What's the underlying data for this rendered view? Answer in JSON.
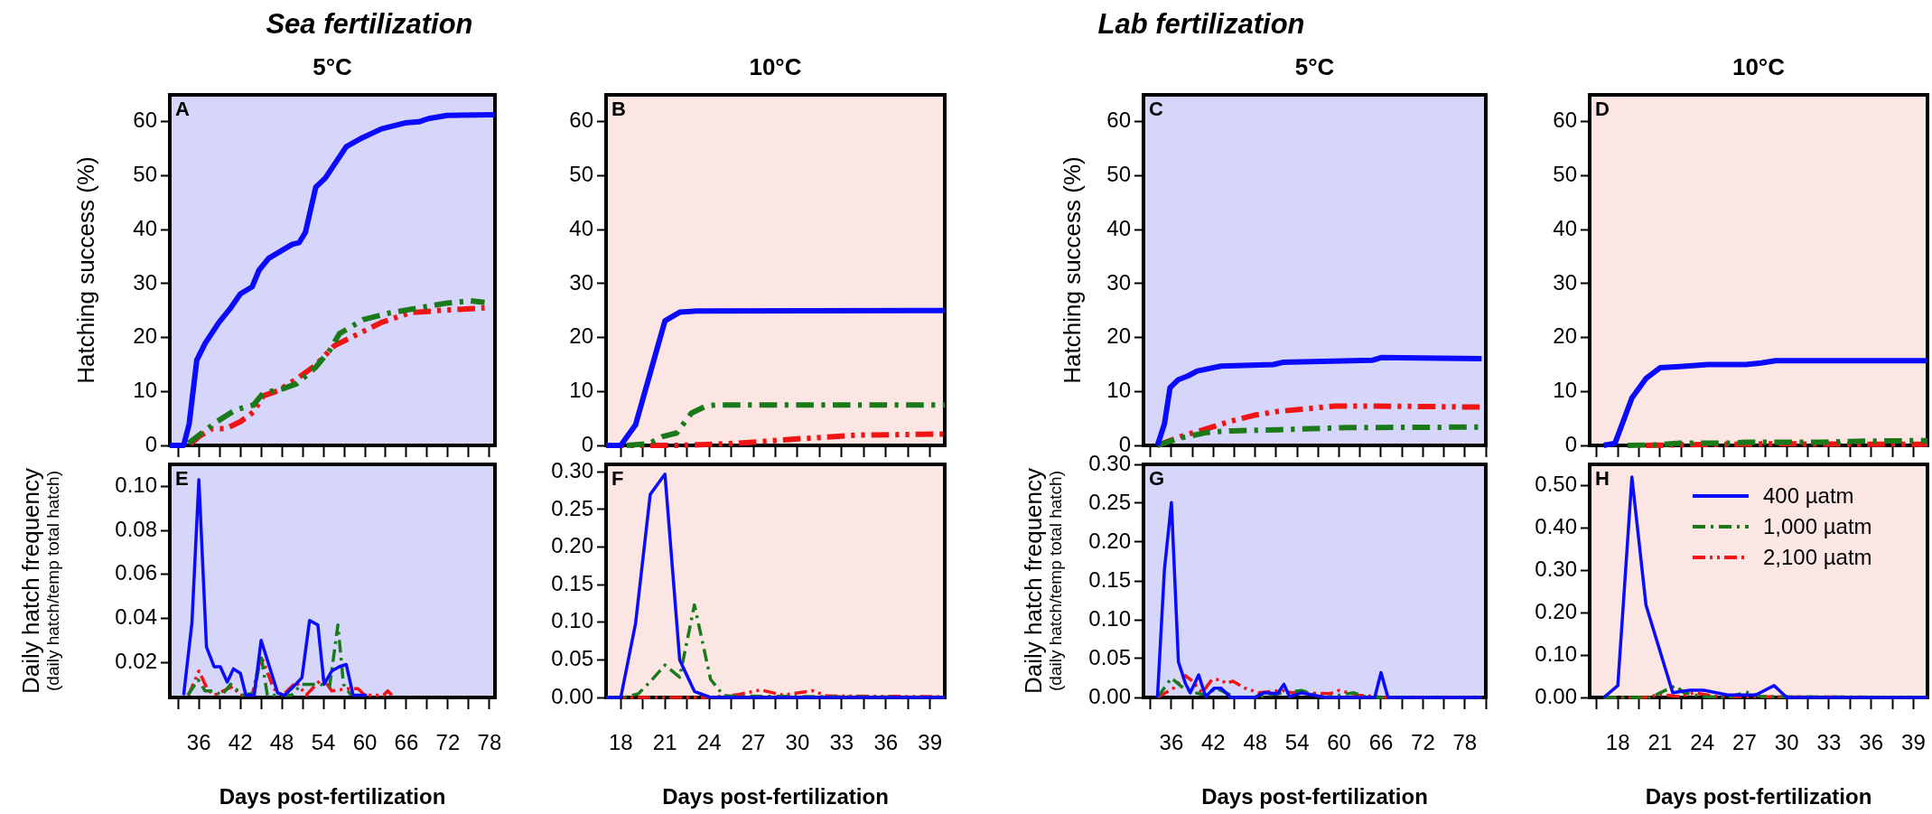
{
  "chart_data": [
    {
      "type": "line",
      "title": "Sea fertilization",
      "subtitle": "5°C",
      "ylabel": "Hatching success (%)",
      "annotations": [
        "A"
      ],
      "xlim": [
        31.8,
        78.8
      ],
      "ylim": [
        0,
        65
      ],
      "tick_labels": "y",
      "xticks": [
        {
          "value": 33,
          "label": null
        },
        36,
        {
          "value": 39,
          "label": null
        },
        42,
        {
          "value": 45,
          "label": null
        },
        48,
        {
          "value": 51,
          "label": null
        },
        54,
        {
          "value": 57,
          "label": null
        },
        60,
        {
          "value": 63,
          "label": null
        },
        66,
        {
          "value": 69,
          "label": null
        },
        72,
        {
          "value": 75,
          "label": null
        },
        78
      ],
      "yticks": [
        0,
        10,
        20,
        30,
        40,
        50,
        60
      ],
      "series": [
        {
          "color": "#0a0aff",
          "line_style": "solid",
          "x": [
            31.8,
            33.8,
            34.6,
            35.7,
            36.9,
            38.9,
            40.6,
            42,
            43.7,
            44.7,
            46.1,
            47.8,
            49.5,
            50.5,
            51.4,
            52.9,
            54.3,
            57.3,
            59.7,
            62.4,
            65.8,
            67.8,
            69.2,
            71.9,
            78.7
          ],
          "values": [
            0,
            0,
            4,
            15.8,
            18.9,
            22.8,
            25.5,
            28.1,
            29.4,
            32.5,
            34.7,
            36,
            37.3,
            37.6,
            39.5,
            47.9,
            49.6,
            55.4,
            57.1,
            58.7,
            59.8,
            60,
            60.6,
            61.2,
            61.3
          ]
        },
        {
          "color": "#1a7a1a",
          "line_style": "dashdot",
          "x": [
            34.5,
            35.9,
            38.6,
            41.3,
            43.9,
            45.3,
            48.1,
            50.1,
            52.9,
            54.9,
            56.3,
            59.7,
            63.7,
            67.8,
            71.9,
            75.3,
            77.3
          ],
          "values": [
            0.4,
            1.8,
            4.4,
            6.6,
            7.5,
            9.7,
            10.5,
            11.4,
            14.5,
            17.6,
            20.7,
            23.3,
            24.6,
            25.5,
            26.4,
            26.8,
            26.5
          ]
        },
        {
          "color": "#f01414",
          "line_style": "dashdotdot",
          "x": [
            34.8,
            36.2,
            37.9,
            39.9,
            42,
            43.9,
            45.3,
            47.4,
            50.1,
            52.9,
            55.6,
            58.3,
            62.4,
            66.5,
            70.6,
            77.3
          ],
          "values": [
            0.3,
            1.8,
            3.1,
            3.1,
            4.4,
            6.2,
            9.2,
            10.1,
            12.3,
            14.9,
            18.5,
            20.2,
            22.8,
            24.6,
            25,
            25.5
          ]
        }
      ]
    },
    {
      "type": "line",
      "subtitle": "10°C",
      "annotations": [
        "B"
      ],
      "xlim": [
        17,
        40
      ],
      "ylim": [
        0,
        65
      ],
      "tick_labels": "y",
      "xticks": [
        18,
        {
          "value": 19.5,
          "label": null
        },
        21,
        {
          "value": 22.5,
          "label": null
        },
        24,
        {
          "value": 25.5,
          "label": null
        },
        27,
        {
          "value": 28.5,
          "label": null
        },
        30,
        {
          "value": 31.5,
          "label": null
        },
        33,
        {
          "value": 34.5,
          "label": null
        },
        36,
        {
          "value": 37.5,
          "label": null
        },
        39
      ],
      "yticks": [
        0,
        10,
        20,
        30,
        40,
        50,
        60
      ],
      "series": [
        {
          "color": "#0a0aff",
          "line_style": "solid",
          "x": [
            17,
            18,
            19,
            21,
            22,
            23.1,
            40
          ],
          "values": [
            0,
            0,
            3.8,
            23.1,
            24.7,
            24.9,
            25
          ]
        },
        {
          "color": "#1a7a1a",
          "line_style": "dashdot",
          "x": [
            18.4,
            19.9,
            20.8,
            21.8,
            22.8,
            23.8,
            24.5,
            40
          ],
          "values": [
            0,
            0.3,
            1.6,
            2.3,
            6,
            7.3,
            7.5,
            7.5
          ]
        },
        {
          "color": "#f01414",
          "line_style": "dashdotdot",
          "x": [
            17,
            22,
            26,
            30,
            34,
            40
          ],
          "values": [
            0,
            0,
            0.4,
            1.2,
            1.9,
            2.1
          ]
        }
      ]
    },
    {
      "type": "line",
      "title": "Lab fertilization",
      "subtitle": "5°C",
      "ylabel": "Hatching success (%)",
      "annotations": [
        "C"
      ],
      "xlim": [
        32,
        81
      ],
      "ylim": [
        0,
        65
      ],
      "tick_labels": "y",
      "xticks": [
        {
          "value": 33,
          "label": null
        },
        36,
        {
          "value": 39,
          "label": null
        },
        42,
        {
          "value": 45,
          "label": null
        },
        48,
        {
          "value": 51,
          "label": null
        },
        54,
        {
          "value": 57,
          "label": null
        },
        60,
        {
          "value": 63,
          "label": null
        },
        66,
        {
          "value": 69,
          "label": null
        },
        72,
        {
          "value": 75,
          "label": null
        },
        78,
        {
          "value": 81,
          "label": null
        }
      ],
      "yticks": [
        0,
        10,
        20,
        30,
        40,
        50,
        60
      ],
      "series": [
        {
          "color": "#0a0aff",
          "line_style": "solid",
          "x": [
            34,
            35,
            35.8,
            37,
            38.4,
            39.7,
            43.1,
            50.6,
            51.9,
            64.8,
            66.1,
            80.4
          ],
          "values": [
            0,
            4,
            10.7,
            12.2,
            12.9,
            13.8,
            14.7,
            15,
            15.4,
            15.8,
            16.3,
            16.1
          ]
        },
        {
          "color": "#1a7a1a",
          "line_style": "dashdot",
          "x": [
            34,
            37,
            41.1,
            44.5,
            51.2,
            55.9,
            61.4,
            80.4
          ],
          "values": [
            0,
            1.3,
            2.4,
            2.7,
            2.9,
            3.1,
            3.3,
            3.4
          ]
        },
        {
          "color": "#f01414",
          "line_style": "dashdotdot",
          "x": [
            34,
            37.7,
            41.1,
            44.5,
            47.9,
            51.2,
            54.6,
            59.4,
            64.8,
            80.4
          ],
          "values": [
            0,
            1.8,
            3.1,
            4.5,
            5.6,
            6.3,
            6.7,
            7.3,
            7.3,
            7.1
          ]
        }
      ]
    },
    {
      "type": "line",
      "subtitle": "10°C",
      "annotations": [
        "D"
      ],
      "xlim": [
        16,
        40
      ],
      "ylim": [
        0,
        65
      ],
      "tick_labels": "y",
      "xticks": [
        {
          "value": 16.5,
          "label": null
        },
        18,
        {
          "value": 19.5,
          "label": null
        },
        21,
        {
          "value": 22.5,
          "label": null
        },
        24,
        {
          "value": 25.5,
          "label": null
        },
        27,
        {
          "value": 28.5,
          "label": null
        },
        30,
        {
          "value": 31.5,
          "label": null
        },
        33,
        {
          "value": 34.5,
          "label": null
        },
        36,
        {
          "value": 37.5,
          "label": null
        },
        39
      ],
      "yticks": [
        0,
        10,
        20,
        30,
        40,
        50,
        60
      ],
      "series": [
        {
          "color": "#0a0aff",
          "line_style": "solid",
          "x": [
            17,
            17.8,
            19,
            20,
            21,
            22.4,
            24.4,
            27.1,
            28.2,
            29.2,
            40
          ],
          "values": [
            0,
            0.4,
            8.8,
            12.4,
            14.4,
            14.6,
            15,
            15,
            15.3,
            15.7,
            15.7
          ]
        },
        {
          "color": "#1a7a1a",
          "line_style": "dashdot",
          "x": [
            18.7,
            20.7,
            22.4,
            25.8,
            27.1,
            32.6,
            36,
            40
          ],
          "values": [
            0,
            0.1,
            0.4,
            0.4,
            0.6,
            0.6,
            0.8,
            0.9
          ]
        },
        {
          "color": "#f01414",
          "line_style": "dashdotdot",
          "x": [
            20,
            22.4,
            25.8,
            29.2,
            36,
            40
          ],
          "values": [
            0,
            0.1,
            0.2,
            0.3,
            0.2,
            0.2
          ]
        }
      ]
    },
    {
      "type": "line",
      "xlabel": "Days post-fertilization",
      "ylabel": "Daily hatch frequency\n(daily hatch/temp total hatch)",
      "annotations": [
        "E"
      ],
      "xlim": [
        31.8,
        78.8
      ],
      "ylim": [
        0.004,
        0.11
      ],
      "xticks": [
        {
          "value": 33,
          "label": null
        },
        36,
        {
          "value": 39,
          "label": null
        },
        42,
        {
          "value": 45,
          "label": null
        },
        48,
        {
          "value": 51,
          "label": null
        },
        54,
        {
          "value": 57,
          "label": null
        },
        60,
        {
          "value": 63,
          "label": null
        },
        66,
        {
          "value": 69,
          "label": null
        },
        72,
        {
          "value": 75,
          "label": null
        },
        78
      ],
      "yticks": [
        0.02,
        0.04,
        0.06,
        0.08,
        {
          "value": 0.1,
          "label": "0.10"
        }
      ],
      "series": [
        {
          "color": "#0a0aff",
          "line_style": "solid",
          "x": [
            33.8,
            35,
            36,
            37.1,
            38.2,
            39.1,
            40.1,
            41,
            42,
            42.8,
            44,
            45,
            47.4,
            48.4,
            50,
            50.9,
            52,
            53.2,
            54.1,
            55.2,
            56.3,
            57.3,
            58.3,
            60.3
          ],
          "values": [
            0.005,
            0.038,
            0.103,
            0.027,
            0.018,
            0.018,
            0.011,
            0.017,
            0.015,
            0.005,
            0.005,
            0.03,
            0.006,
            0.005,
            0.01,
            0.013,
            0.039,
            0.037,
            0.01,
            0.016,
            0.018,
            0.019,
            0.005,
            0.005
          ]
        },
        {
          "color": "#1a7a1a",
          "line_style": "dashdot",
          "x": [
            34.4,
            35.9,
            36.9,
            38.2,
            39.3,
            40.6,
            42.3,
            44,
            45,
            45.9,
            47.4,
            49.4,
            50.8,
            53.5,
            54.9,
            56.1,
            56.9,
            58
          ],
          "values": [
            0.005,
            0.012,
            0.007,
            0.007,
            0.005,
            0.01,
            0.005,
            0.006,
            0.023,
            0.005,
            0.005,
            0.005,
            0.01,
            0.01,
            0.009,
            0.037,
            0.01,
            0.005
          ]
        },
        {
          "color": "#f01414",
          "line_style": "dashdotdot",
          "x": [
            34.5,
            36,
            37.2,
            38.2,
            40.9,
            42,
            43.7,
            45,
            46.8,
            48.1,
            50.1,
            51.5,
            53.9,
            55.2,
            57.6,
            59,
            60,
            62.7,
            63.3,
            63.9
          ],
          "values": [
            0.005,
            0.016,
            0.008,
            0.005,
            0.009,
            0.005,
            0.005,
            0.023,
            0.008,
            0.005,
            0.011,
            0.005,
            0.013,
            0.007,
            0.008,
            0.008,
            0.005,
            0.005,
            0.007,
            0.005
          ]
        }
      ]
    },
    {
      "type": "line",
      "xlabel": "Days post-fertilization",
      "annotations": [
        "F"
      ],
      "xlim": [
        17,
        40
      ],
      "ylim": [
        0,
        0.31
      ],
      "xticks": [
        18,
        {
          "value": 19.5,
          "label": null
        },
        21,
        {
          "value": 22.5,
          "label": null
        },
        24,
        {
          "value": 25.5,
          "label": null
        },
        27,
        {
          "value": 28.5,
          "label": null
        },
        30,
        {
          "value": 31.5,
          "label": null
        },
        33,
        {
          "value": 34.5,
          "label": null
        },
        36,
        {
          "value": 37.5,
          "label": null
        },
        39
      ],
      "yticks": [
        {
          "value": 0,
          "label": "0.00"
        },
        0.05,
        {
          "value": 0.1,
          "label": "0.10"
        },
        0.15,
        {
          "value": 0.2,
          "label": "0.20"
        },
        0.25,
        {
          "value": 0.3,
          "label": "0.30"
        }
      ],
      "series": [
        {
          "color": "#0a0aff",
          "line_style": "solid",
          "x": [
            17,
            18,
            19,
            20,
            21,
            22,
            23,
            24.1,
            40
          ],
          "values": [
            0,
            0,
            0.098,
            0.27,
            0.297,
            0.05,
            0.008,
            0,
            0
          ]
        },
        {
          "color": "#1a7a1a",
          "line_style": "dashdot",
          "x": [
            17,
            18.2,
            19.2,
            20,
            21,
            22,
            23,
            24.1,
            25,
            40
          ],
          "values": [
            0,
            0,
            0.005,
            0.021,
            0.043,
            0.027,
            0.123,
            0.024,
            0.002,
            0
          ]
        },
        {
          "color": "#f01414",
          "line_style": "dashdotdot",
          "x": [
            17,
            24,
            26,
            27.5,
            29,
            31,
            32,
            40
          ],
          "values": [
            0,
            0,
            0.004,
            0.01,
            0.003,
            0.009,
            0.002,
            0.001
          ]
        }
      ]
    },
    {
      "type": "line",
      "xlabel": "Days post-fertilization",
      "ylabel": "Daily hatch frequency\n(daily hatch/temp total hatch)",
      "annotations": [
        "G"
      ],
      "xlim": [
        32,
        81
      ],
      "ylim": [
        0,
        0.3
      ],
      "xticks": [
        {
          "value": 33,
          "label": null
        },
        36,
        {
          "value": 39,
          "label": null
        },
        42,
        {
          "value": 45,
          "label": null
        },
        48,
        {
          "value": 51,
          "label": null
        },
        54,
        {
          "value": 57,
          "label": null
        },
        60,
        {
          "value": 63,
          "label": null
        },
        66,
        {
          "value": 69,
          "label": null
        },
        72,
        {
          "value": 75,
          "label": null
        },
        78,
        {
          "value": 81,
          "label": null
        }
      ],
      "yticks": [
        {
          "value": 0,
          "label": "0.00"
        },
        0.05,
        {
          "value": 0.1,
          "label": "0.10"
        },
        0.15,
        {
          "value": 0.2,
          "label": "0.20"
        },
        0.25,
        {
          "value": 0.3,
          "label": "0.30"
        }
      ],
      "series": [
        {
          "color": "#0a0aff",
          "line_style": "solid",
          "x": [
            34,
            35,
            36,
            37,
            38,
            38.7,
            39.9,
            40.9,
            42.1,
            43.1,
            44.5,
            47.9,
            49.2,
            51.2,
            52.1,
            52.9,
            54.6,
            58,
            65.1,
            66,
            67,
            80.4
          ],
          "values": [
            0,
            0.165,
            0.251,
            0.046,
            0.018,
            0.006,
            0.029,
            0.001,
            0.012,
            0.012,
            0,
            0,
            0.006,
            0.005,
            0.017,
            0.001,
            0.006,
            0,
            0,
            0.032,
            0,
            0
          ]
        },
        {
          "color": "#1a7a1a",
          "line_style": "dashdot",
          "x": [
            34,
            36,
            37.7,
            39.4,
            41.1,
            42.4,
            43.8,
            45.1,
            47.9,
            50.6,
            54.6,
            58,
            62.1,
            64.1,
            80.4
          ],
          "values": [
            0,
            0.025,
            0.012,
            0.006,
            0.003,
            0.012,
            0.006,
            0,
            0,
            0.004,
            0.009,
            0,
            0.006,
            0,
            0
          ]
        },
        {
          "color": "#f01414",
          "line_style": "dashdotdot",
          "x": [
            34,
            36.3,
            38,
            39,
            40.4,
            41.8,
            43.1,
            43.8,
            44.8,
            46.5,
            48.5,
            51.9,
            53.3,
            58.7,
            60,
            62.8,
            66.8,
            80.4
          ],
          "values": [
            0,
            0.012,
            0.028,
            0.021,
            0.006,
            0.023,
            0.023,
            0.018,
            0.021,
            0.012,
            0.006,
            0.009,
            0.006,
            0.005,
            0.009,
            0.003,
            0,
            0
          ]
        }
      ]
    },
    {
      "type": "line",
      "xlabel": "Days post-fertilization",
      "annotations": [
        "H"
      ],
      "xlim": [
        16,
        40
      ],
      "ylim": [
        0,
        0.55
      ],
      "legend": "top right",
      "xticks": [
        {
          "value": 16.5,
          "label": null
        },
        18,
        {
          "value": 19.5,
          "label": null
        },
        21,
        {
          "value": 22.5,
          "label": null
        },
        24,
        {
          "value": 25.5,
          "label": null
        },
        27,
        {
          "value": 28.5,
          "label": null
        },
        30,
        {
          "value": 31.5,
          "label": null
        },
        33,
        {
          "value": 34.5,
          "label": null
        },
        36,
        {
          "value": 37.5,
          "label": null
        },
        39
      ],
      "yticks": [
        {
          "value": 0,
          "label": "0.00"
        },
        {
          "value": 0.1,
          "label": "0.10"
        },
        {
          "value": 0.2,
          "label": "0.20"
        },
        {
          "value": 0.3,
          "label": "0.30"
        },
        {
          "value": 0.4,
          "label": "0.40"
        },
        {
          "value": 0.5,
          "label": "0.50"
        }
      ],
      "series": [
        {
          "name": "400 µatm",
          "color": "#0a0aff",
          "line_style": "solid",
          "x": [
            17,
            18,
            19,
            20,
            21.9,
            23.1,
            24.1,
            25.8,
            27.8,
            29.1,
            30,
            40
          ],
          "values": [
            0,
            0.028,
            0.52,
            0.218,
            0.011,
            0.017,
            0.017,
            0.006,
            0.006,
            0.028,
            0,
            0
          ]
        },
        {
          "name": "1,000 µatm",
          "color": "#1a7a1a",
          "line_style": "dashdot",
          "x": [
            17,
            20.4,
            21,
            22.1,
            22.7,
            24.1,
            25.8,
            27.1,
            28.2,
            40
          ],
          "values": [
            0,
            0,
            0.011,
            0.028,
            0.011,
            0.002,
            0,
            0.013,
            0.002,
            0
          ]
        },
        {
          "name": "2,100 µatm",
          "color": "#f01414",
          "line_style": "dashdotdot",
          "x": [
            17,
            20,
            21,
            22.4,
            23.4,
            25.1,
            40
          ],
          "values": [
            0,
            0,
            0.007,
            0.002,
            0.011,
            0.002,
            0
          ]
        }
      ]
    }
  ]
}
